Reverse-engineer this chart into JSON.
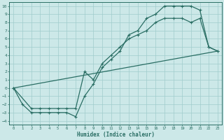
{
  "xlabel": "Humidex (Indice chaleur)",
  "bg_color": "#cce8e8",
  "grid_color": "#a0cccc",
  "line_color": "#2a6e64",
  "xlim": [
    -0.5,
    23.5
  ],
  "ylim": [
    -4.5,
    10.5
  ],
  "xticks": [
    0,
    1,
    2,
    3,
    4,
    5,
    6,
    7,
    8,
    9,
    10,
    11,
    12,
    13,
    14,
    15,
    16,
    17,
    18,
    19,
    20,
    21,
    22,
    23
  ],
  "yticks": [
    -4,
    -3,
    -2,
    -1,
    0,
    1,
    2,
    3,
    4,
    5,
    6,
    7,
    8,
    9,
    10
  ],
  "curve1_x": [
    0,
    1,
    2,
    3,
    4,
    5,
    6,
    7,
    8,
    9,
    10,
    11,
    12,
    13,
    14,
    15,
    16,
    17,
    18,
    19,
    20,
    21,
    22,
    23
  ],
  "curve1_y": [
    0,
    -2,
    -3,
    -3,
    -3,
    -3,
    -3,
    -3.5,
    -1,
    0.5,
    2.5,
    3.5,
    4.5,
    6.5,
    7,
    8.5,
    9,
    10,
    10,
    10,
    10,
    9.5,
    5,
    4.5
  ],
  "curve2_x": [
    0,
    2,
    3,
    4,
    5,
    6,
    7,
    8,
    9,
    10,
    11,
    12,
    13,
    14,
    15,
    16,
    17,
    18,
    19,
    20,
    21,
    22,
    23
  ],
  "curve2_y": [
    0,
    -2.5,
    -2.5,
    -2.5,
    -2.5,
    -2.5,
    -2.5,
    2,
    1,
    3,
    4,
    5,
    6,
    6.5,
    7,
    8,
    8.5,
    8.5,
    8.5,
    8,
    8.5,
    5,
    4.5
  ],
  "curve3_x": [
    0,
    23
  ],
  "curve3_y": [
    0,
    4.5
  ]
}
